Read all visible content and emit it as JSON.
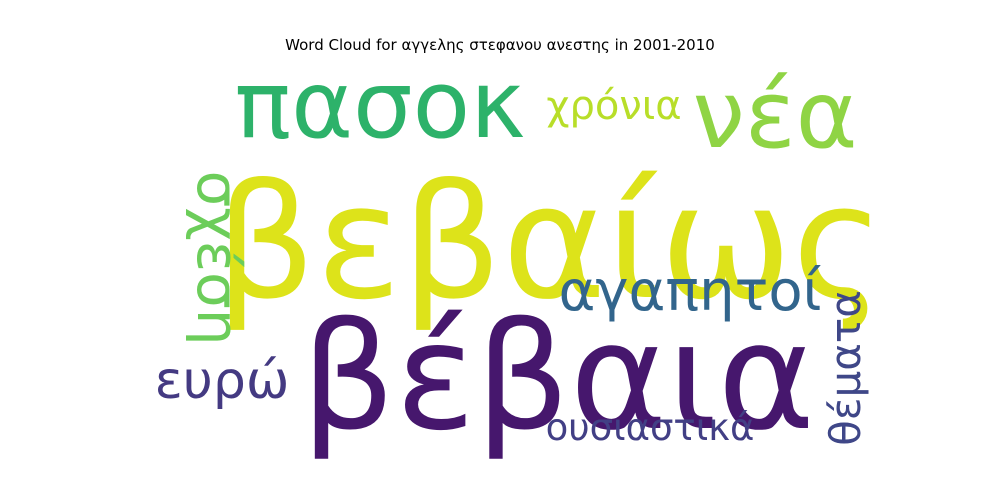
{
  "chart_data": {
    "type": "wordcloud",
    "title": "Word Cloud for αγγελης στεφανου ανεστης in 2001-2010",
    "words": [
      {
        "text": "βεβαίως",
        "weight": 1.0,
        "color": "#dde31a"
      },
      {
        "text": "βέβαια",
        "weight": 0.92,
        "color": "#46176d"
      },
      {
        "text": "πασοκ",
        "weight": 0.62,
        "color": "#2db26a"
      },
      {
        "text": "νέα",
        "weight": 0.62,
        "color": "#8fd444"
      },
      {
        "text": "αγαπητοί",
        "weight": 0.36,
        "color": "#32658c"
      },
      {
        "text": "σχέση",
        "weight": 0.33,
        "color": "#6ccd5a"
      },
      {
        "text": "ευρώ",
        "weight": 0.33,
        "color": "#443a82"
      },
      {
        "text": "θέματα",
        "weight": 0.27,
        "color": "#3f4788"
      },
      {
        "text": "χρόνια",
        "weight": 0.27,
        "color": "#b8de29"
      },
      {
        "text": "ουσιαστικά",
        "weight": 0.25,
        "color": "#423f85"
      }
    ]
  }
}
